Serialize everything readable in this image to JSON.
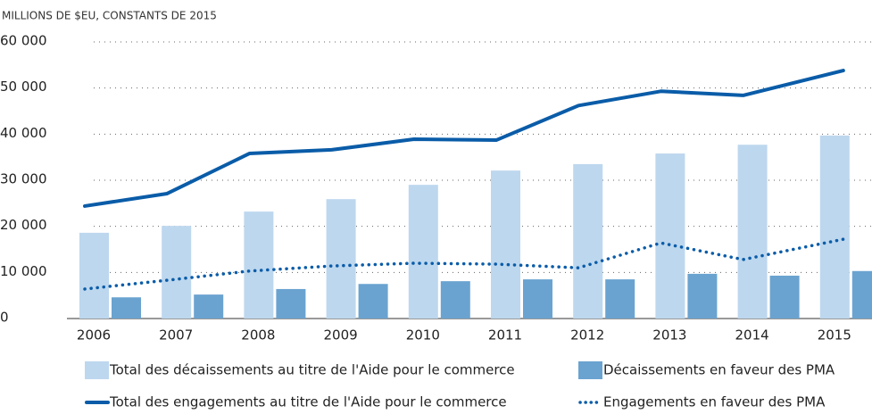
{
  "chart_data": {
    "type": "combo",
    "title": "MILLIONS DE $EU, CONSTANTS DE 2015",
    "categories": [
      "2006",
      "2007",
      "2008",
      "2009",
      "2010",
      "2011",
      "2012",
      "2013",
      "2014",
      "2015"
    ],
    "series": [
      {
        "name": "Total des décaissements au titre de l'Aide pour le commerce",
        "type": "bar",
        "color": "#bdd7ee",
        "values": [
          18600,
          20100,
          23200,
          25900,
          29000,
          32100,
          33500,
          35800,
          37700,
          39700
        ]
      },
      {
        "name": "Décaissements en faveur des PMA",
        "type": "bar",
        "color": "#6aa3d0",
        "values": [
          4600,
          5200,
          6400,
          7500,
          8100,
          8500,
          8500,
          9700,
          9300,
          10300
        ]
      },
      {
        "name": "Total des engagements au titre de l'Aide pour le commerce",
        "type": "line",
        "style": "solid",
        "color": "#0a5ca8",
        "values": [
          24400,
          27100,
          35800,
          36600,
          38900,
          38700,
          46200,
          49300,
          48400,
          53800
        ]
      },
      {
        "name": "Engagements en faveur des PMA",
        "type": "line",
        "style": "dotted",
        "color": "#0a5ca8",
        "values": [
          6400,
          8300,
          10300,
          11400,
          12000,
          11800,
          11000,
          16400,
          12800,
          17200
        ]
      }
    ],
    "ylim": [
      0,
      60000
    ],
    "yticks": [
      0,
      {
        "value": 10000,
        "label": "10 000"
      },
      {
        "value": 20000,
        "label": "20 000"
      },
      {
        "value": 30000,
        "label": "30 000"
      },
      {
        "value": 40000,
        "label": "40 000"
      },
      {
        "value": 50000,
        "label": "50 000"
      },
      {
        "value": 60000,
        "label": "60 000"
      }
    ],
    "grid": true
  }
}
